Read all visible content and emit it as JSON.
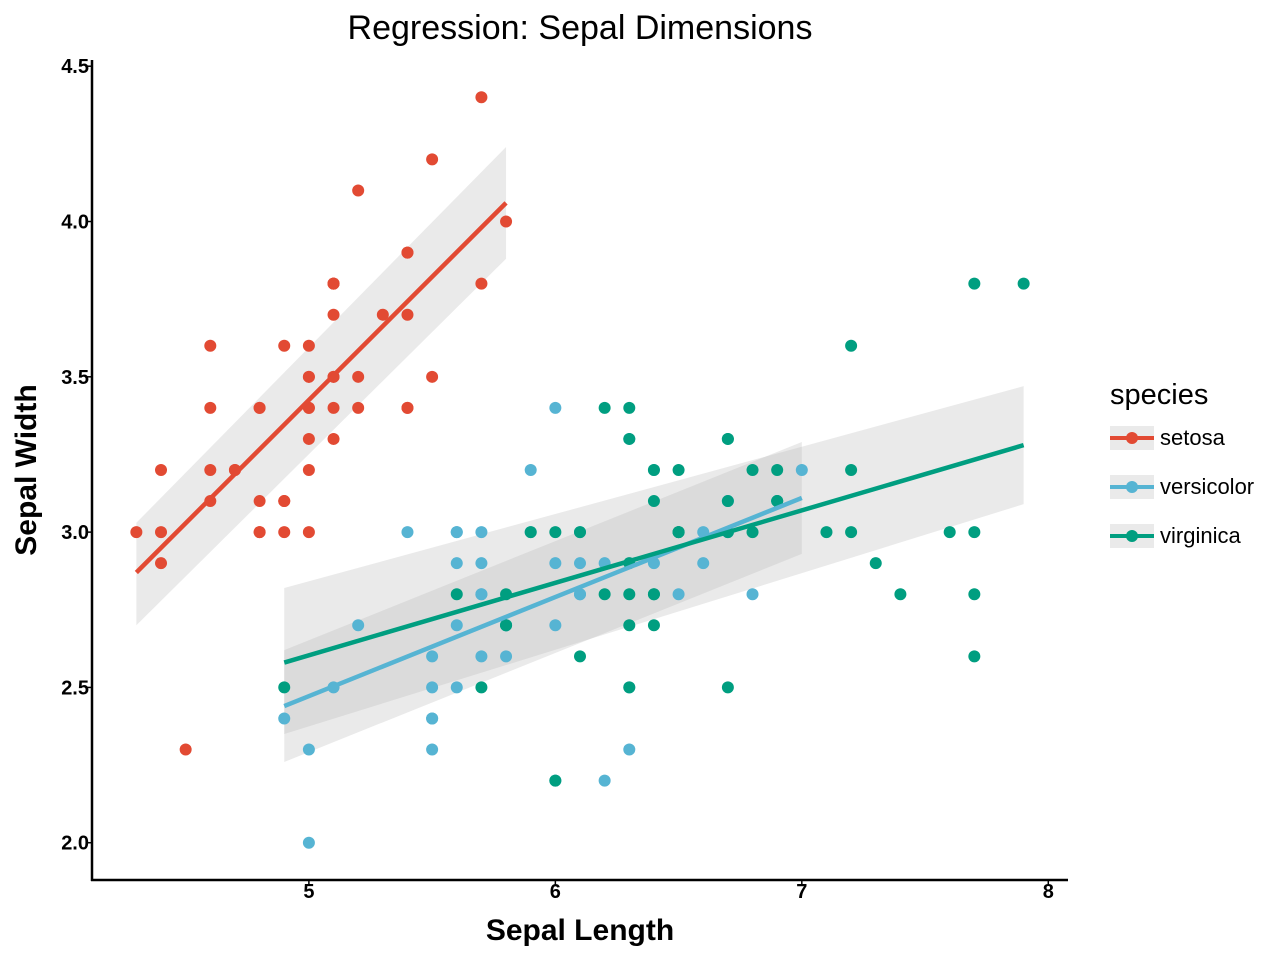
{
  "chart_data": {
    "type": "scatter",
    "title": "Regression: Sepal Dimensions",
    "xlabel": "Sepal Length",
    "ylabel": "Sepal Width",
    "xlim": [
      4.12,
      8.08
    ],
    "ylim": [
      1.88,
      4.52
    ],
    "xticks": [
      5,
      6,
      7,
      8
    ],
    "yticks": [
      2.0,
      2.5,
      3.0,
      3.5,
      4.0,
      4.5
    ],
    "grid": false,
    "legend": {
      "title": "species",
      "placement": "right"
    },
    "series": [
      {
        "name": "setosa",
        "color": "#E24A33",
        "points": [
          [
            5.1,
            3.5
          ],
          [
            4.9,
            3.0
          ],
          [
            4.7,
            3.2
          ],
          [
            4.6,
            3.1
          ],
          [
            5.0,
            3.6
          ],
          [
            5.4,
            3.9
          ],
          [
            4.6,
            3.4
          ],
          [
            5.0,
            3.4
          ],
          [
            4.4,
            2.9
          ],
          [
            4.9,
            3.1
          ],
          [
            5.4,
            3.7
          ],
          [
            4.8,
            3.4
          ],
          [
            4.8,
            3.0
          ],
          [
            4.3,
            3.0
          ],
          [
            5.8,
            4.0
          ],
          [
            5.7,
            4.4
          ],
          [
            5.4,
            3.9
          ],
          [
            5.1,
            3.5
          ],
          [
            5.7,
            3.8
          ],
          [
            5.1,
            3.8
          ],
          [
            5.4,
            3.4
          ],
          [
            5.1,
            3.7
          ],
          [
            4.6,
            3.6
          ],
          [
            5.1,
            3.3
          ],
          [
            4.8,
            3.4
          ],
          [
            5.0,
            3.0
          ],
          [
            5.0,
            3.4
          ],
          [
            5.2,
            3.5
          ],
          [
            5.2,
            3.4
          ],
          [
            4.7,
            3.2
          ],
          [
            4.8,
            3.1
          ],
          [
            5.4,
            3.4
          ],
          [
            5.2,
            4.1
          ],
          [
            5.5,
            4.2
          ],
          [
            4.9,
            3.1
          ],
          [
            5.0,
            3.2
          ],
          [
            5.5,
            3.5
          ],
          [
            4.9,
            3.6
          ],
          [
            4.4,
            3.0
          ],
          [
            5.1,
            3.4
          ],
          [
            5.0,
            3.5
          ],
          [
            4.5,
            2.3
          ],
          [
            4.4,
            3.2
          ],
          [
            5.0,
            3.5
          ],
          [
            5.1,
            3.8
          ],
          [
            4.8,
            3.0
          ],
          [
            5.1,
            3.8
          ],
          [
            4.6,
            3.2
          ],
          [
            5.3,
            3.7
          ],
          [
            5.0,
            3.3
          ]
        ],
        "regression": {
          "x": [
            4.3,
            5.8
          ],
          "y": [
            2.87,
            4.06
          ],
          "ci_low": [
            2.7,
            3.88
          ],
          "ci_high": [
            3.03,
            4.24
          ]
        }
      },
      {
        "name": "versicolor",
        "color": "#56B4D3",
        "points": [
          [
            7.0,
            3.2
          ],
          [
            6.4,
            3.2
          ],
          [
            6.9,
            3.1
          ],
          [
            5.5,
            2.3
          ],
          [
            6.5,
            2.8
          ],
          [
            5.7,
            2.8
          ],
          [
            6.3,
            3.3
          ],
          [
            4.9,
            2.4
          ],
          [
            6.6,
            2.9
          ],
          [
            5.2,
            2.7
          ],
          [
            5.0,
            2.0
          ],
          [
            5.9,
            3.0
          ],
          [
            6.0,
            2.2
          ],
          [
            6.1,
            2.9
          ],
          [
            5.6,
            2.9
          ],
          [
            6.7,
            3.1
          ],
          [
            5.6,
            3.0
          ],
          [
            5.8,
            2.7
          ],
          [
            6.2,
            2.2
          ],
          [
            5.6,
            2.5
          ],
          [
            5.9,
            3.2
          ],
          [
            6.1,
            2.8
          ],
          [
            6.3,
            2.5
          ],
          [
            6.1,
            2.8
          ],
          [
            6.4,
            2.9
          ],
          [
            6.6,
            3.0
          ],
          [
            6.8,
            2.8
          ],
          [
            6.7,
            3.0
          ],
          [
            6.0,
            2.9
          ],
          [
            5.7,
            2.6
          ],
          [
            5.5,
            2.4
          ],
          [
            5.5,
            2.4
          ],
          [
            5.8,
            2.7
          ],
          [
            6.0,
            2.7
          ],
          [
            5.4,
            3.0
          ],
          [
            6.0,
            3.4
          ],
          [
            6.7,
            3.1
          ],
          [
            6.3,
            2.3
          ],
          [
            5.6,
            3.0
          ],
          [
            5.5,
            2.5
          ],
          [
            5.5,
            2.6
          ],
          [
            6.1,
            3.0
          ],
          [
            5.8,
            2.6
          ],
          [
            5.0,
            2.3
          ],
          [
            5.6,
            2.7
          ],
          [
            5.7,
            3.0
          ],
          [
            5.7,
            2.9
          ],
          [
            6.2,
            2.9
          ],
          [
            5.1,
            2.5
          ],
          [
            5.7,
            2.8
          ]
        ],
        "regression": {
          "x": [
            4.9,
            7.0
          ],
          "y": [
            2.44,
            3.11
          ],
          "ci_low": [
            2.26,
            2.93
          ],
          "ci_high": [
            2.62,
            3.29
          ]
        }
      },
      {
        "name": "virginica",
        "color": "#009E80",
        "points": [
          [
            6.3,
            3.3
          ],
          [
            5.8,
            2.7
          ],
          [
            7.1,
            3.0
          ],
          [
            6.3,
            2.9
          ],
          [
            6.5,
            3.0
          ],
          [
            7.6,
            3.0
          ],
          [
            4.9,
            2.5
          ],
          [
            7.3,
            2.9
          ],
          [
            6.7,
            2.5
          ],
          [
            7.2,
            3.6
          ],
          [
            6.5,
            3.2
          ],
          [
            6.4,
            2.7
          ],
          [
            6.8,
            3.0
          ],
          [
            5.7,
            2.5
          ],
          [
            5.8,
            2.8
          ],
          [
            6.4,
            3.2
          ],
          [
            6.5,
            3.0
          ],
          [
            7.7,
            3.8
          ],
          [
            7.7,
            2.6
          ],
          [
            6.0,
            2.2
          ],
          [
            6.9,
            3.2
          ],
          [
            5.6,
            2.8
          ],
          [
            7.7,
            2.8
          ],
          [
            6.3,
            2.7
          ],
          [
            6.7,
            3.3
          ],
          [
            7.2,
            3.2
          ],
          [
            6.2,
            2.8
          ],
          [
            6.1,
            3.0
          ],
          [
            6.4,
            2.8
          ],
          [
            7.2,
            3.0
          ],
          [
            7.4,
            2.8
          ],
          [
            7.9,
            3.8
          ],
          [
            6.4,
            2.8
          ],
          [
            6.3,
            2.8
          ],
          [
            6.1,
            2.6
          ],
          [
            7.7,
            3.0
          ],
          [
            6.3,
            3.4
          ],
          [
            6.4,
            3.1
          ],
          [
            6.0,
            3.0
          ],
          [
            6.9,
            3.1
          ],
          [
            6.7,
            3.1
          ],
          [
            6.9,
            3.1
          ],
          [
            5.8,
            2.7
          ],
          [
            6.8,
            3.2
          ],
          [
            6.7,
            3.3
          ],
          [
            6.7,
            3.0
          ],
          [
            6.3,
            2.5
          ],
          [
            6.5,
            3.0
          ],
          [
            6.2,
            3.4
          ],
          [
            5.9,
            3.0
          ]
        ],
        "regression": {
          "x": [
            4.9,
            7.9
          ],
          "y": [
            2.58,
            3.28
          ],
          "ci_low": [
            2.35,
            3.09
          ],
          "ci_high": [
            2.82,
            3.47
          ]
        }
      }
    ]
  }
}
